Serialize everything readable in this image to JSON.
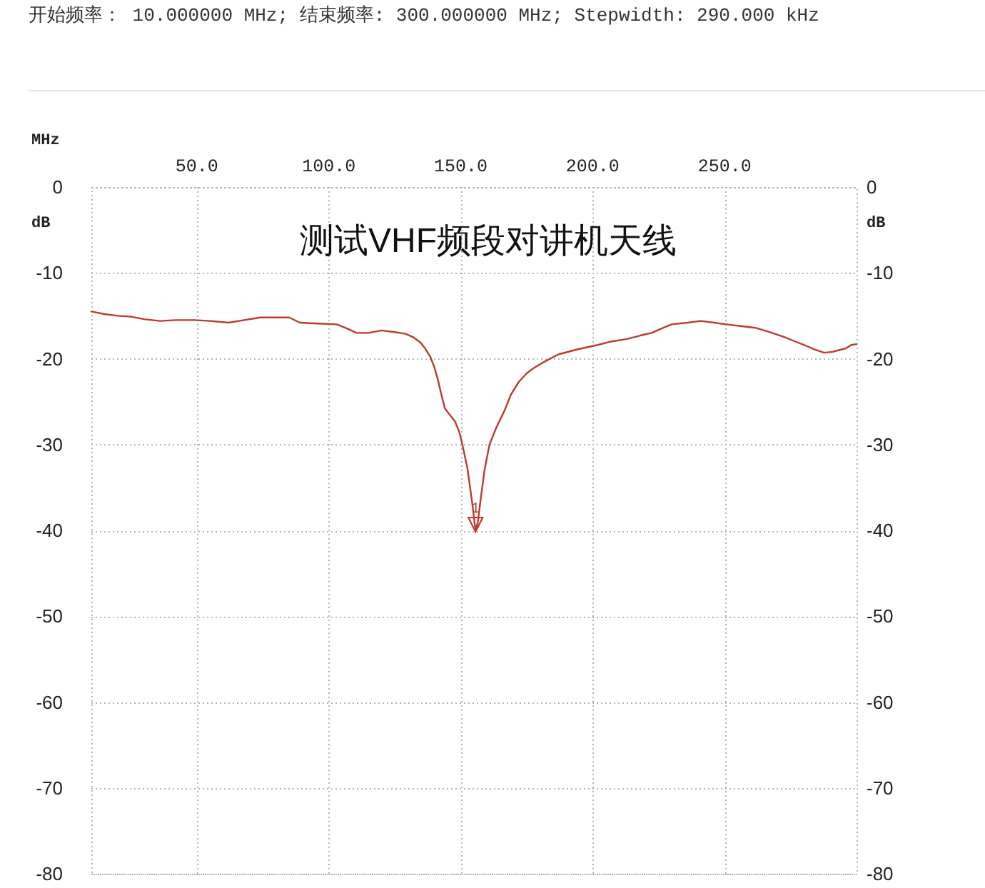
{
  "chart_data": {
    "type": "line",
    "title": "测试VHF频段对讲机天线",
    "annotations": [
      "开始频率： 10.000000 MHz; 结束频率: 300.000000 MHz; Stepwidth: 290.000 kHz",
      {
        "text": "1",
        "x": 155.6,
        "y": -40
      }
    ],
    "xlabel": "MHz",
    "ylabel": "dB",
    "y2label": "dB",
    "x": [
      10,
      15,
      20,
      25,
      30,
      36,
      42,
      49,
      55,
      62,
      68,
      74,
      80,
      85,
      89,
      96,
      103,
      107,
      110.5,
      115,
      120,
      125,
      129,
      132,
      134.7,
      136.5,
      138.5,
      140,
      141.3,
      142.5,
      144,
      146,
      147.8,
      149.5,
      150.6,
      152.5,
      154.3,
      155,
      155.6,
      156.5,
      157.5,
      159,
      160.9,
      163.5,
      166.5,
      169,
      172,
      175,
      177.6,
      182,
      187,
      194.4,
      201.9,
      207,
      213.1,
      218,
      222.4,
      226,
      229.9,
      236,
      241,
      246,
      250.5,
      256,
      261.6,
      267,
      272.8,
      276,
      280.2,
      284,
      287.7,
      291,
      293.3,
      296,
      298,
      300
    ],
    "series": [
      {
        "color": "#bd3a2e",
        "values": [
          -14.5,
          -14.8,
          -15.0,
          -15.1,
          -15.4,
          -15.6,
          -15.5,
          -15.5,
          -15.6,
          -15.8,
          -15.5,
          -15.2,
          -15.2,
          -15.2,
          -15.8,
          -15.9,
          -16.0,
          -16.5,
          -17.0,
          -17.0,
          -16.7,
          -16.9,
          -17.1,
          -17.5,
          -18.1,
          -18.8,
          -19.8,
          -21.0,
          -22.4,
          -24.0,
          -25.8,
          -26.6,
          -27.3,
          -28.6,
          -30.0,
          -32.7,
          -36.7,
          -38.5,
          -40.0,
          -39.0,
          -36.5,
          -33.0,
          -30.0,
          -28.0,
          -26.1,
          -24.2,
          -22.7,
          -21.7,
          -21.1,
          -20.3,
          -19.5,
          -18.9,
          -18.4,
          -18.0,
          -17.7,
          -17.3,
          -17.0,
          -16.5,
          -16.0,
          -15.8,
          -15.6,
          -15.8,
          -16.0,
          -16.2,
          -16.4,
          -16.9,
          -17.5,
          -17.9,
          -18.4,
          -18.9,
          -19.3,
          -19.2,
          -19.0,
          -18.8,
          -18.4,
          -18.3
        ]
      }
    ],
    "xlim": [
      10,
      300
    ],
    "xticks": [
      {
        "value": 50,
        "label": "50.0"
      },
      {
        "value": 100,
        "label": "100.0"
      },
      {
        "value": 150,
        "label": "150.0"
      },
      {
        "value": 200,
        "label": "200.0"
      },
      {
        "value": 250,
        "label": "250.0"
      }
    ],
    "ylim": [
      -80,
      0
    ],
    "yticks": [
      0,
      -10,
      -20,
      -30,
      -40,
      -50,
      -60,
      -70,
      -80
    ],
    "y2lim": [
      -80,
      0
    ],
    "y2ticks": [
      0,
      -10,
      -20,
      -30,
      -40,
      -50,
      -60,
      -70,
      -80
    ],
    "grid": true
  }
}
